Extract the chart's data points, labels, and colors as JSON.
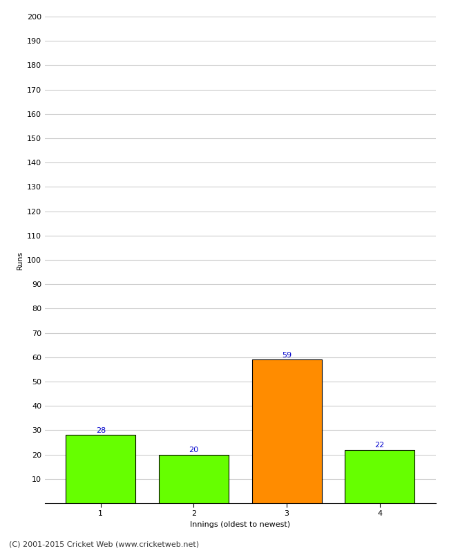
{
  "categories": [
    "1",
    "2",
    "3",
    "4"
  ],
  "values": [
    28,
    20,
    59,
    22
  ],
  "bar_colors": [
    "#66ff00",
    "#66ff00",
    "#ff8c00",
    "#66ff00"
  ],
  "bar_edge_colors": [
    "#000000",
    "#000000",
    "#000000",
    "#000000"
  ],
  "label_color": "#0000cc",
  "ylabel": "Runs",
  "xlabel": "Innings (oldest to newest)",
  "ylim": [
    0,
    200
  ],
  "yticks": [
    0,
    10,
    20,
    30,
    40,
    50,
    60,
    70,
    80,
    90,
    100,
    110,
    120,
    130,
    140,
    150,
    160,
    170,
    180,
    190,
    200
  ],
  "footnote": "(C) 2001-2015 Cricket Web (www.cricketweb.net)",
  "background_color": "#ffffff",
  "grid_color": "#cccccc",
  "label_fontsize": 8,
  "axis_fontsize": 8,
  "footnote_fontsize": 8,
  "bar_width": 0.75
}
